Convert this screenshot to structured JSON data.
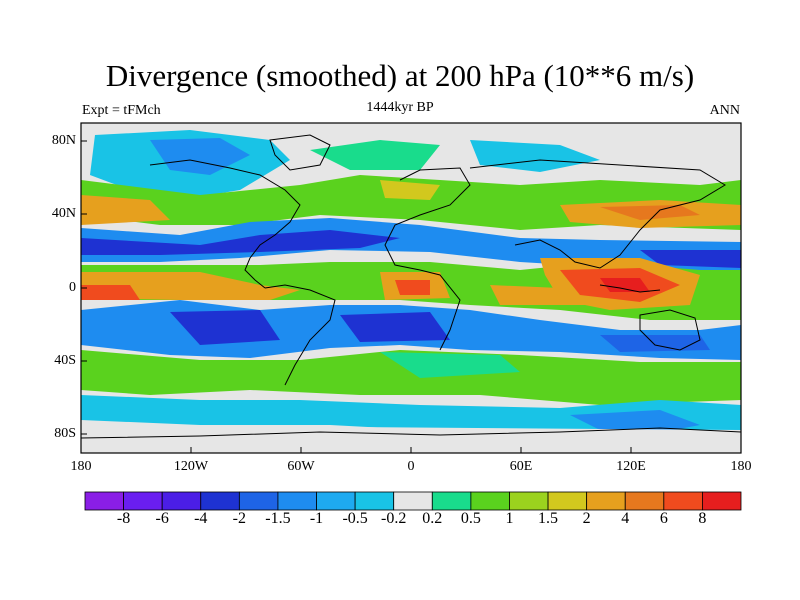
{
  "title": "Divergence (smoothed) at 200 hPa (10**6 m/s)",
  "left_label": "Expt = tFMch",
  "center_label": "1444kyr BP",
  "right_label": "ANN",
  "chart_data": {
    "type": "heatmap",
    "variable": "Divergence (smoothed) at 200 hPa",
    "units": "10**6 m/s",
    "x_ticks": [
      "180",
      "120W",
      "60W",
      "0",
      "60E",
      "120E",
      "180"
    ],
    "y_ticks": [
      "80N",
      "40N",
      "0",
      "40S",
      "80S"
    ],
    "colorbar_levels": [
      "-8",
      "-6",
      "-4",
      "-2",
      "-1.5",
      "-1",
      "-0.5",
      "-0.2",
      "0.2",
      "0.5",
      "1",
      "1.5",
      "2",
      "4",
      "6",
      "8"
    ],
    "colorbar_colors": [
      "#8a1ee6",
      "#6a1ef0",
      "#4b1ee6",
      "#1e32d2",
      "#1e64e6",
      "#1e8cf0",
      "#1eaaf0",
      "#19c3e6",
      "#e6e6e6",
      "#19dc8c",
      "#5ad21e",
      "#9bd21e",
      "#d2c81e",
      "#e6a01e",
      "#e6781e",
      "#f04b1e",
      "#e61e1e"
    ]
  }
}
